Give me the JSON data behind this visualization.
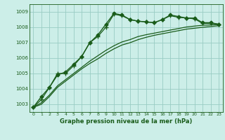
{
  "title": "Graphe pression niveau de la mer (hPa)",
  "bg_color": "#cceee8",
  "plot_bg_color": "#cceee8",
  "grid_color": "#99ccc4",
  "line_color": "#1a5c1a",
  "xlim": [
    -0.5,
    23.5
  ],
  "ylim": [
    1002.5,
    1009.5
  ],
  "yticks": [
    1003,
    1004,
    1005,
    1006,
    1007,
    1008,
    1009
  ],
  "xticks": [
    0,
    1,
    2,
    3,
    4,
    5,
    6,
    7,
    8,
    9,
    10,
    11,
    12,
    13,
    14,
    15,
    16,
    17,
    18,
    19,
    20,
    21,
    22,
    23
  ],
  "series": [
    {
      "x": [
        0,
        1,
        2,
        3,
        4,
        5,
        6,
        7,
        8,
        9,
        10,
        11,
        12,
        13,
        14,
        15,
        16,
        17,
        18,
        19,
        20,
        21,
        22,
        23
      ],
      "y": [
        1002.8,
        1003.5,
        1004.1,
        1004.9,
        1005.1,
        1005.6,
        1006.1,
        1007.0,
        1007.5,
        1008.2,
        1008.9,
        1008.8,
        1008.5,
        1008.4,
        1008.35,
        1008.3,
        1008.5,
        1008.8,
        1008.7,
        1008.6,
        1008.6,
        1008.3,
        1008.3,
        1008.2
      ],
      "marker": "D",
      "markersize": 2.5,
      "linewidth": 1.0
    },
    {
      "x": [
        0,
        1,
        2,
        3,
        4,
        5,
        6,
        7,
        8,
        9,
        10,
        11,
        12,
        13,
        14,
        15,
        16,
        17,
        18,
        19,
        20,
        21,
        22,
        23
      ],
      "y": [
        1002.8,
        1003.3,
        1004.1,
        1005.0,
        1005.0,
        1005.5,
        1006.1,
        1007.0,
        1007.4,
        1008.0,
        1008.85,
        1008.75,
        1008.5,
        1008.4,
        1008.35,
        1008.3,
        1008.5,
        1008.75,
        1008.65,
        1008.6,
        1008.55,
        1008.25,
        1008.25,
        1008.2
      ],
      "marker": "+",
      "markersize": 4,
      "linewidth": 0.9
    },
    {
      "x": [
        0,
        1,
        2,
        3,
        4,
        5,
        6,
        7,
        8,
        9,
        10,
        11,
        12,
        13,
        14,
        15,
        16,
        17,
        18,
        19,
        20,
        21,
        22,
        23
      ],
      "y": [
        1002.8,
        1003.1,
        1003.6,
        1004.2,
        1004.6,
        1005.0,
        1005.4,
        1005.8,
        1006.15,
        1006.5,
        1006.8,
        1007.05,
        1007.2,
        1007.4,
        1007.52,
        1007.62,
        1007.72,
        1007.82,
        1007.92,
        1008.02,
        1008.08,
        1008.13,
        1008.15,
        1008.18
      ],
      "marker": null,
      "markersize": 0,
      "linewidth": 0.9
    },
    {
      "x": [
        0,
        1,
        2,
        3,
        4,
        5,
        6,
        7,
        8,
        9,
        10,
        11,
        12,
        13,
        14,
        15,
        16,
        17,
        18,
        19,
        20,
        21,
        22,
        23
      ],
      "y": [
        1002.8,
        1003.0,
        1003.5,
        1004.1,
        1004.5,
        1004.9,
        1005.3,
        1005.65,
        1005.95,
        1006.3,
        1006.6,
        1006.85,
        1007.0,
        1007.2,
        1007.35,
        1007.48,
        1007.58,
        1007.68,
        1007.78,
        1007.88,
        1007.94,
        1008.0,
        1008.05,
        1008.1
      ],
      "marker": null,
      "markersize": 0,
      "linewidth": 0.9
    }
  ]
}
